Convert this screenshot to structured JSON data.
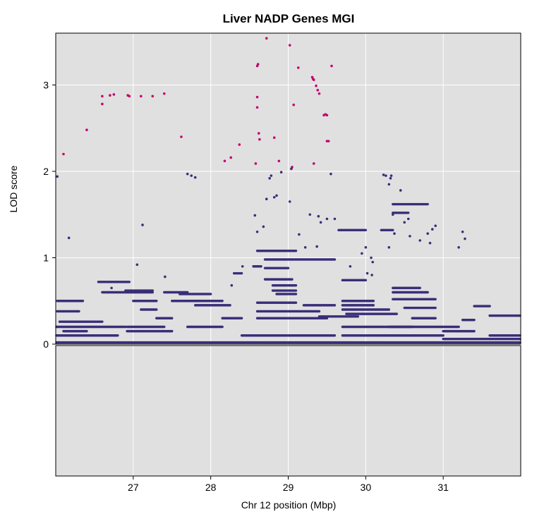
{
  "chart_data": {
    "type": "scatter",
    "title": "Liver NADP Genes MGI",
    "xlabel": "Chr 12 position (Mbp)",
    "ylabel": "LOD score",
    "xlim": [
      26.0,
      32.0
    ],
    "ylim": [
      0,
      3.6
    ],
    "x_ticks": [
      {
        "value": 27,
        "label": "27"
      },
      {
        "value": 28,
        "label": "28"
      },
      {
        "value": 29,
        "label": "29"
      },
      {
        "value": 30,
        "label": "30"
      },
      {
        "value": 31,
        "label": "31"
      }
    ],
    "y_ticks": [
      {
        "value": 0,
        "label": "0"
      },
      {
        "value": 1,
        "label": "1"
      },
      {
        "value": 2,
        "label": "2"
      },
      {
        "value": 3,
        "label": "3"
      }
    ],
    "grid": true,
    "colors": {
      "panel_background": "#e0e0e0",
      "grid": "#ffffff",
      "low_score": "#3a2e78",
      "high_score": "#c4006e"
    },
    "highlight_threshold": 2.05,
    "series": [
      {
        "color": "#c4006e",
        "points": [
          [
            26.1,
            2.2
          ],
          [
            26.4,
            2.48
          ],
          [
            26.6,
            2.78
          ],
          [
            26.6,
            2.87
          ],
          [
            26.7,
            2.88
          ],
          [
            26.75,
            2.89
          ],
          [
            26.93,
            2.88
          ],
          [
            26.95,
            2.87
          ],
          [
            27.1,
            2.87
          ],
          [
            27.25,
            2.87
          ],
          [
            27.4,
            2.9
          ],
          [
            27.62,
            2.4
          ],
          [
            28.18,
            2.12
          ],
          [
            28.26,
            2.16
          ],
          [
            28.37,
            2.31
          ],
          [
            28.58,
            2.09
          ],
          [
            28.6,
            2.74
          ],
          [
            28.6,
            2.86
          ],
          [
            28.6,
            3.22
          ],
          [
            28.61,
            3.24
          ],
          [
            28.62,
            2.44
          ],
          [
            28.63,
            2.37
          ],
          [
            28.72,
            3.54
          ],
          [
            28.82,
            2.39
          ],
          [
            28.88,
            2.12
          ],
          [
            29.02,
            3.46
          ],
          [
            29.05,
            2.05
          ],
          [
            29.07,
            2.77
          ],
          [
            29.13,
            3.2
          ],
          [
            29.31,
            3.09
          ],
          [
            29.32,
            3.07
          ],
          [
            29.33,
            3.06
          ],
          [
            29.36,
            2.99
          ],
          [
            29.38,
            2.94
          ],
          [
            29.4,
            2.9
          ],
          [
            29.33,
            2.09
          ],
          [
            29.46,
            2.65
          ],
          [
            29.48,
            2.66
          ],
          [
            29.5,
            2.65
          ],
          [
            29.5,
            2.35
          ],
          [
            29.52,
            2.35
          ],
          [
            29.56,
            3.22
          ]
        ]
      },
      {
        "color": "#3a2e78",
        "points": [
          [
            26.02,
            1.94
          ],
          [
            26.17,
            1.23
          ],
          [
            26.72,
            0.65
          ],
          [
            27.05,
            0.92
          ],
          [
            27.12,
            1.38
          ],
          [
            27.41,
            0.78
          ],
          [
            27.7,
            1.97
          ],
          [
            27.75,
            1.95
          ],
          [
            27.8,
            1.93
          ],
          [
            28.27,
            0.68
          ],
          [
            28.41,
            0.9
          ],
          [
            28.57,
            1.49
          ],
          [
            28.6,
            1.3
          ],
          [
            28.68,
            1.36
          ],
          [
            28.72,
            1.68
          ],
          [
            28.76,
            1.92
          ],
          [
            28.78,
            1.95
          ],
          [
            28.82,
            1.7
          ],
          [
            28.85,
            1.72
          ],
          [
            28.91,
            1.99
          ],
          [
            29.02,
            1.65
          ],
          [
            29.04,
            2.03
          ],
          [
            29.14,
            1.27
          ],
          [
            29.22,
            1.12
          ],
          [
            29.28,
            1.5
          ],
          [
            29.37,
            1.13
          ],
          [
            29.39,
            1.48
          ],
          [
            29.42,
            1.41
          ],
          [
            29.5,
            1.45
          ],
          [
            29.55,
            1.97
          ],
          [
            29.6,
            1.45
          ],
          [
            30.0,
            1.12
          ],
          [
            30.07,
            1.0
          ],
          [
            30.09,
            0.95
          ],
          [
            30.23,
            1.96
          ],
          [
            30.26,
            1.95
          ],
          [
            30.3,
            1.85
          ],
          [
            30.3,
            1.12
          ],
          [
            30.32,
            1.92
          ],
          [
            30.33,
            1.95
          ],
          [
            30.35,
            1.5
          ],
          [
            30.37,
            1.28
          ],
          [
            30.45,
            1.78
          ],
          [
            30.5,
            1.41
          ],
          [
            30.55,
            1.45
          ],
          [
            30.57,
            1.25
          ],
          [
            30.7,
            1.2
          ],
          [
            30.8,
            1.28
          ],
          [
            30.83,
            1.17
          ],
          [
            30.86,
            1.33
          ],
          [
            30.9,
            1.37
          ],
          [
            31.2,
            1.12
          ],
          [
            31.25,
            1.3
          ],
          [
            31.28,
            1.22
          ],
          [
            30.02,
            0.82
          ],
          [
            29.8,
            0.9
          ],
          [
            29.95,
            1.05
          ],
          [
            30.08,
            0.8
          ]
        ],
        "segments": [
          [
            26.02,
            26.35,
            0.5
          ],
          [
            26.02,
            26.3,
            0.38
          ],
          [
            26.05,
            26.6,
            0.26
          ],
          [
            26.0,
            26.9,
            0.2
          ],
          [
            26.1,
            26.4,
            0.15
          ],
          [
            26.0,
            26.8,
            0.1
          ],
          [
            26.0,
            32.0,
            0.02
          ],
          [
            26.55,
            26.95,
            0.72
          ],
          [
            26.6,
            27.25,
            0.6
          ],
          [
            26.9,
            27.25,
            0.62
          ],
          [
            26.92,
            27.4,
            0.2
          ],
          [
            26.92,
            27.5,
            0.15
          ],
          [
            27.0,
            27.3,
            0.5
          ],
          [
            27.1,
            27.3,
            0.4
          ],
          [
            27.3,
            27.5,
            0.3
          ],
          [
            27.4,
            27.7,
            0.6
          ],
          [
            27.5,
            27.85,
            0.5
          ],
          [
            27.6,
            28.0,
            0.58
          ],
          [
            27.7,
            28.15,
            0.2
          ],
          [
            27.8,
            28.15,
            0.5
          ],
          [
            27.8,
            28.25,
            0.45
          ],
          [
            28.15,
            28.4,
            0.3
          ],
          [
            28.3,
            28.4,
            0.82
          ],
          [
            28.55,
            28.65,
            0.9
          ],
          [
            28.6,
            29.1,
            1.08
          ],
          [
            28.7,
            29.6,
            0.98
          ],
          [
            28.7,
            29.0,
            0.88
          ],
          [
            28.7,
            29.05,
            0.75
          ],
          [
            28.8,
            29.1,
            0.68
          ],
          [
            28.8,
            29.1,
            0.62
          ],
          [
            28.85,
            29.1,
            0.58
          ],
          [
            28.6,
            29.1,
            0.48
          ],
          [
            28.6,
            29.4,
            0.38
          ],
          [
            28.6,
            29.5,
            0.3
          ],
          [
            28.4,
            29.6,
            0.1
          ],
          [
            29.2,
            29.6,
            0.45
          ],
          [
            29.4,
            29.9,
            0.32
          ],
          [
            29.65,
            30.0,
            1.32
          ],
          [
            29.7,
            30.0,
            0.74
          ],
          [
            29.7,
            30.1,
            0.5
          ],
          [
            29.7,
            30.1,
            0.45
          ],
          [
            29.7,
            30.3,
            0.4
          ],
          [
            29.75,
            30.4,
            0.35
          ],
          [
            29.7,
            30.6,
            0.2
          ],
          [
            29.7,
            30.7,
            0.1
          ],
          [
            30.2,
            30.35,
            1.32
          ],
          [
            30.35,
            30.8,
            1.62
          ],
          [
            30.35,
            30.55,
            1.52
          ],
          [
            30.35,
            30.7,
            0.65
          ],
          [
            30.35,
            30.8,
            0.6
          ],
          [
            30.35,
            30.9,
            0.52
          ],
          [
            30.5,
            30.9,
            0.42
          ],
          [
            30.6,
            30.9,
            0.3
          ],
          [
            30.3,
            31.2,
            0.2
          ],
          [
            30.3,
            31.0,
            0.1
          ],
          [
            31.0,
            31.4,
            0.15
          ],
          [
            31.25,
            31.4,
            0.28
          ],
          [
            31.4,
            31.6,
            0.44
          ],
          [
            31.6,
            32.0,
            0.33
          ],
          [
            31.6,
            32.0,
            0.1
          ],
          [
            31.0,
            32.0,
            0.06
          ]
        ]
      }
    ]
  }
}
